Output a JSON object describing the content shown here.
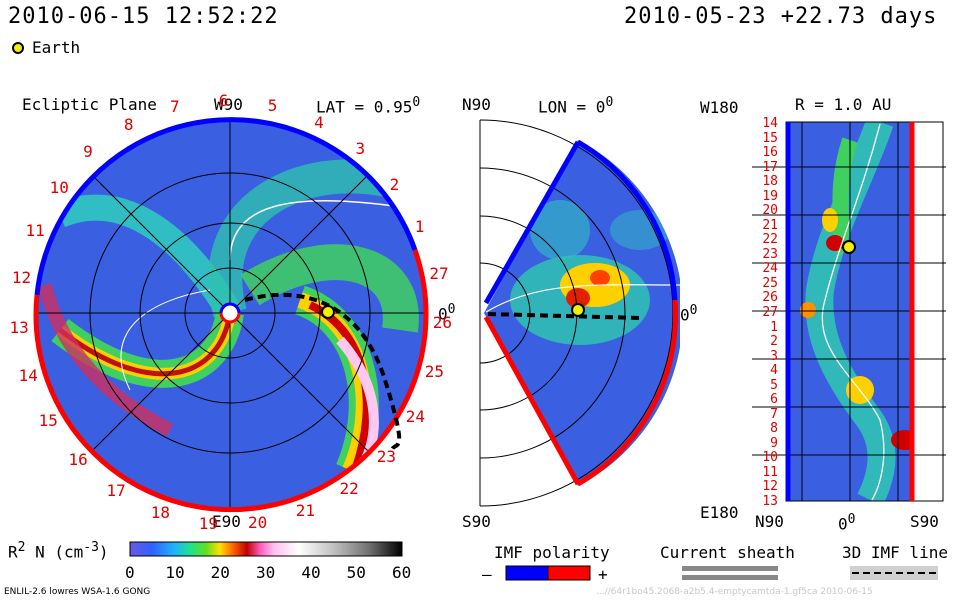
{
  "header": {
    "datetime": "2010-06-15 12:52:22",
    "reference": "2010-05-23 +22.73 days",
    "earth_legend": "Earth"
  },
  "ecliptic": {
    "title": "Ecliptic Plane",
    "top_label": "W90",
    "bottom_label": "E90",
    "lat_label": "LAT = 0.95",
    "lat_sup": "0",
    "zero_label": "0",
    "zero_sup": "0",
    "day_labels": [
      "13",
      "14",
      "15",
      "16",
      "17",
      "18",
      "19",
      "20",
      "21",
      "22",
      "23",
      "24",
      "25",
      "26",
      "27",
      "1",
      "2",
      "3",
      "4",
      "5",
      "6",
      "7",
      "8",
      "9",
      "10",
      "11",
      "12"
    ]
  },
  "meridional": {
    "top_label": "N90",
    "bottom_label": "S90",
    "lon_label": "LON = 0",
    "lon_sup": "0",
    "zero_label": "0",
    "zero_sup": "0"
  },
  "carrington": {
    "title": "R = 1.0 AU",
    "top_label": "W180",
    "bottom_label": "E180",
    "x_left": "N90",
    "x_mid": "0",
    "x_mid_sup": "0",
    "x_right": "S90",
    "day_labels": [
      "14",
      "15",
      "16",
      "17",
      "18",
      "19",
      "20",
      "21",
      "22",
      "23",
      "24",
      "25",
      "26",
      "27",
      "1",
      "2",
      "3",
      "4",
      "5",
      "6",
      "7",
      "8",
      "9",
      "10",
      "11",
      "12",
      "13"
    ]
  },
  "colorbar": {
    "label": "R",
    "label_sup": "2",
    "label_rest": " N (cm",
    "label_sup2": "-3",
    "label_end": ")",
    "ticks": [
      "0",
      "10",
      "20",
      "30",
      "40",
      "50",
      "60"
    ]
  },
  "legend": {
    "imf_polarity": "IMF polarity",
    "minus": "–",
    "plus": "+",
    "current_sheath": "Current sheath",
    "imf_line": "3D IMF line"
  },
  "footer": {
    "model": "ENLIL-2.6 lowres WSA-1.6 GONG",
    "run_id": "...//64r1bo45.2068-a2b5.4-emptycamtda-1.gf5ca   2010-06-15"
  },
  "colors": {
    "background_blue": "#3a5fe0",
    "polarity_negative": "#0000ff",
    "polarity_positive": "#ff0000",
    "earth": "#f0f000"
  }
}
